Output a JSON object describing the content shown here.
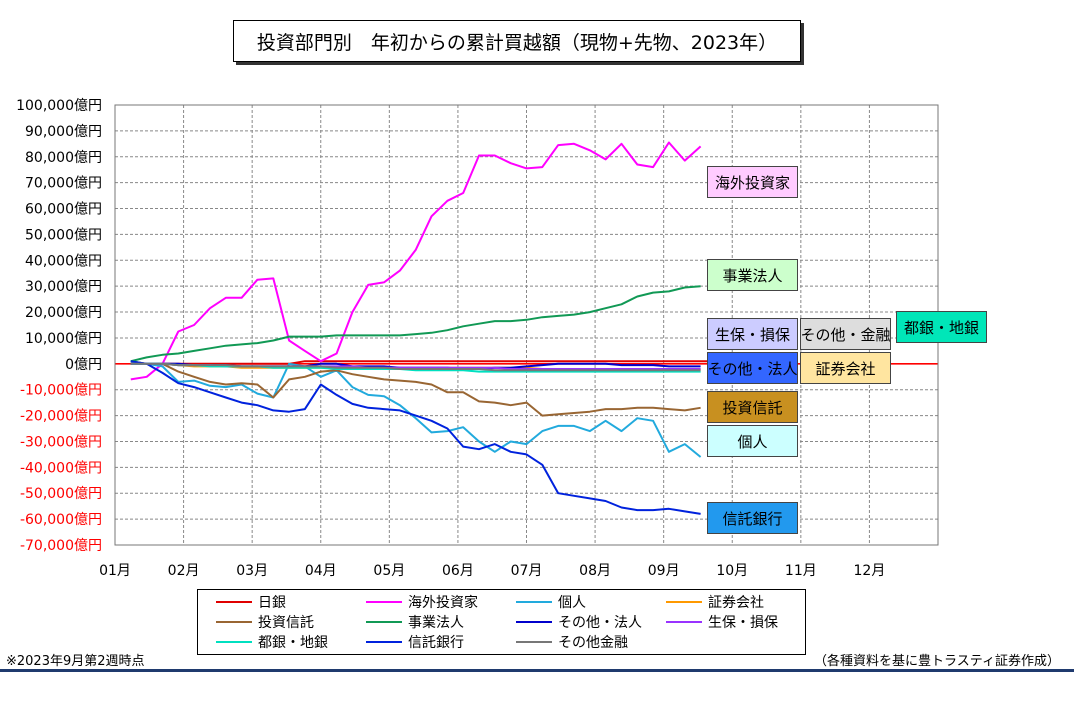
{
  "title": "投資部門別　年初からの累計買越額（現物+先物、2023年）",
  "note_left": "※2023年9月第2週時点",
  "note_right": "（各種資料を基に豊トラスティ証券作成）",
  "chart_data": {
    "type": "line",
    "title": "投資部門別　年初からの累計買越額（現物+先物、2023年）",
    "ylim": [
      -70000,
      100000
    ],
    "ystep": 10000,
    "y_tick_labels": [
      "100,000億円",
      "90,000億円",
      "80,000億円",
      "70,000億円",
      "60,000億円",
      "50,000億円",
      "40,000億円",
      "30,000億円",
      "20,000億円",
      "10,000億円",
      "0億円",
      "-10,000億円",
      "-20,000億円",
      "-30,000億円",
      "-40,000億円",
      "-50,000億円",
      "-60,000億円",
      "-70,000億円"
    ],
    "x_tick_labels": [
      "01月",
      "02月",
      "03月",
      "04月",
      "05月",
      "06月",
      "07月",
      "08月",
      "09月",
      "10月",
      "11月",
      "12月"
    ],
    "xlim_weeks": [
      0,
      52
    ],
    "grid": true,
    "series": [
      {
        "name": "日銀",
        "color": "#e00000",
        "start_week": 1,
        "values": [
          0,
          0,
          0,
          0,
          0,
          0,
          0,
          0,
          0,
          0,
          0,
          1000,
          1000,
          1000,
          1000,
          1000,
          1000,
          1000,
          1000,
          1000,
          1000,
          1000,
          1000,
          1000,
          1000,
          1000,
          1000,
          1000,
          1000,
          1000,
          1000,
          1000,
          1000,
          1000,
          1000,
          1000,
          1000,
          1000
        ]
      },
      {
        "name": "海外投資家",
        "color": "#ff00ff",
        "start_week": 1,
        "values": [
          -6000,
          -5000,
          0,
          12500,
          15000,
          21500,
          25500,
          25500,
          32500,
          33000,
          9000,
          5000,
          1000,
          4000,
          20000,
          30500,
          31500,
          36000,
          44000,
          57000,
          63000,
          66000,
          80500,
          80500,
          77500,
          75500,
          76000,
          84500,
          85000,
          82500,
          79000,
          85000,
          77000,
          76000,
          85500,
          78500,
          84000
        ]
      },
      {
        "name": "個人",
        "color": "#22aadd",
        "start_week": 1,
        "values": [
          1000,
          0,
          -1000,
          -7000,
          -6500,
          -8500,
          -9000,
          -8000,
          -11500,
          -13000,
          0,
          -1000,
          -5000,
          -2500,
          -9000,
          -12000,
          -12500,
          -16000,
          -21000,
          -26500,
          -26000,
          -24500,
          -30000,
          -34000,
          -30000,
          -31000,
          -26000,
          -24000,
          -24000,
          -26000,
          -22000,
          -26000,
          -21000,
          -22000,
          -34000,
          -31000,
          -36000
        ]
      },
      {
        "name": "証券会社",
        "color": "#ff9900",
        "start_week": 1,
        "values": [
          0,
          0,
          0,
          -500,
          -1000,
          -1000,
          -1000,
          -1500,
          -1500,
          -1500,
          -1500,
          -1500,
          -1500,
          -1500,
          -1500,
          -1500,
          -1500,
          -1500,
          -1500,
          -1500,
          -1500,
          -1500,
          -1500,
          -1500,
          -1500,
          -1500,
          -2000,
          -2000,
          -2000,
          -2000,
          -2000,
          -2000,
          -2000,
          -2000,
          -2000,
          -2000,
          -2000
        ]
      },
      {
        "name": "投資信託",
        "color": "#996633",
        "start_week": 1,
        "values": [
          1000,
          0,
          0,
          -3000,
          -5000,
          -7000,
          -8000,
          -7500,
          -8000,
          -13000,
          -6000,
          -5000,
          -3000,
          -2500,
          -4000,
          -5000,
          -6000,
          -6500,
          -7000,
          -8000,
          -11000,
          -11000,
          -14500,
          -15000,
          -16000,
          -15000,
          -20000,
          -19500,
          -19000,
          -18500,
          -17500,
          -17500,
          -17000,
          -17000,
          -17500,
          -18000,
          -17000
        ]
      },
      {
        "name": "事業法人",
        "color": "#119955",
        "start_week": 1,
        "values": [
          1000,
          2500,
          3500,
          4000,
          5000,
          6000,
          7000,
          7500,
          8000,
          9000,
          10500,
          10500,
          10500,
          11000,
          11000,
          11000,
          11000,
          11000,
          11500,
          12000,
          13000,
          14500,
          15500,
          16500,
          16500,
          17000,
          18000,
          18500,
          19000,
          20000,
          21500,
          23000,
          26000,
          27500,
          28000,
          29500,
          30000
        ]
      },
      {
        "name": "その他・法人",
        "color": "#0000cc",
        "start_week": 1,
        "values": [
          0,
          0,
          0,
          0,
          -500,
          -500,
          -500,
          -1000,
          -1000,
          -1000,
          -1000,
          -1000,
          0,
          0,
          -1000,
          -1000,
          -1000,
          -1500,
          -1500,
          -1500,
          -1500,
          -2000,
          -2000,
          -1500,
          -1500,
          -1000,
          -500,
          0,
          0,
          0,
          0,
          -500,
          -500,
          -500,
          -1000,
          -1000,
          -1000
        ]
      },
      {
        "name": "生保・損保",
        "color": "#9933ff",
        "start_week": 1,
        "values": [
          0,
          0,
          0,
          -500,
          -500,
          -500,
          -1000,
          -1000,
          -1000,
          -1000,
          -1000,
          -1000,
          -1000,
          -1000,
          -1000,
          -1500,
          -1500,
          -1500,
          -1500,
          -1500,
          -1500,
          -1500,
          -1500,
          -1500,
          -2000,
          -2000,
          -2000,
          -2000,
          -2000,
          -2000,
          -2000,
          -2000,
          -2000,
          -2000,
          -2000,
          -2000,
          -2000
        ]
      },
      {
        "name": "都銀・地銀",
        "color": "#00e0c0",
        "start_week": 1,
        "values": [
          0,
          0,
          0,
          -500,
          -500,
          -1000,
          -1000,
          -1000,
          -1000,
          -1500,
          -1500,
          -1500,
          -1500,
          -2000,
          -2000,
          -2000,
          -2000,
          -2000,
          -2500,
          -2500,
          -2500,
          -2500,
          -3000,
          -3000,
          -3000,
          -3000,
          -3000,
          -3000,
          -3000,
          -3000,
          -3000,
          -3000,
          -3000,
          -3000,
          -3000,
          -3000,
          -3000
        ]
      },
      {
        "name": "信託銀行",
        "color": "#0022dd",
        "start_week": 1,
        "values": [
          1000,
          0,
          -3500,
          -7500,
          -9000,
          -11000,
          -13000,
          -15000,
          -16000,
          -18000,
          -18500,
          -17500,
          -8000,
          -12000,
          -15500,
          -17000,
          -17500,
          -18000,
          -20000,
          -22000,
          -25000,
          -32000,
          -33000,
          -31000,
          -34000,
          -35000,
          -39000,
          -50000,
          -51000,
          -52000,
          -53000,
          -55500,
          -56500,
          -56500,
          -56000,
          -57000,
          -58000
        ]
      },
      {
        "name": "その他金融",
        "color": "#777777",
        "start_week": 1,
        "values": [
          0,
          0,
          0,
          -500,
          -500,
          -500,
          -500,
          -1000,
          -1000,
          -1000,
          -1000,
          -1000,
          -1000,
          -1500,
          -1500,
          -1500,
          -1500,
          -2000,
          -2000,
          -2000,
          -2000,
          -2000,
          -2000,
          -2500,
          -2500,
          -2500,
          -2500,
          -2500,
          -2500,
          -2500,
          -2500,
          -2500,
          -2500,
          -2500,
          -2500,
          -2500,
          -2500
        ]
      }
    ],
    "end_labels": [
      {
        "text": "海外投資家",
        "bg": "#ffccff"
      },
      {
        "text": "事業法人",
        "bg": "#ccffcc"
      },
      {
        "text": "生保・損保",
        "bg": "#ccccff"
      },
      {
        "text": "その他・金融",
        "bg": "#dddddd"
      },
      {
        "text": "都銀・地銀",
        "bg": "#00e6b8"
      },
      {
        "text": "その他・法人",
        "bg": "#3366ff"
      },
      {
        "text": "証券会社",
        "bg": "#ffe5a0"
      },
      {
        "text": "投資信託",
        "bg": "#c89020"
      },
      {
        "text": "個人",
        "bg": "#ccffff"
      },
      {
        "text": "信託銀行",
        "bg": "#2299ee"
      }
    ],
    "legend": [
      {
        "name": "日銀",
        "color": "#e00000"
      },
      {
        "name": "海外投資家",
        "color": "#ff00ff"
      },
      {
        "name": "個人",
        "color": "#22aadd"
      },
      {
        "name": "証券会社",
        "color": "#ff9900"
      },
      {
        "name": "投資信託",
        "color": "#996633"
      },
      {
        "name": "事業法人",
        "color": "#119955"
      },
      {
        "name": "その他・法人",
        "color": "#0000cc"
      },
      {
        "name": "生保・損保",
        "color": "#9933ff"
      },
      {
        "name": "都銀・地銀",
        "color": "#00e0c0"
      },
      {
        "name": "信託銀行",
        "color": "#0022dd"
      },
      {
        "name": "その他金融",
        "color": "#777777"
      }
    ]
  }
}
